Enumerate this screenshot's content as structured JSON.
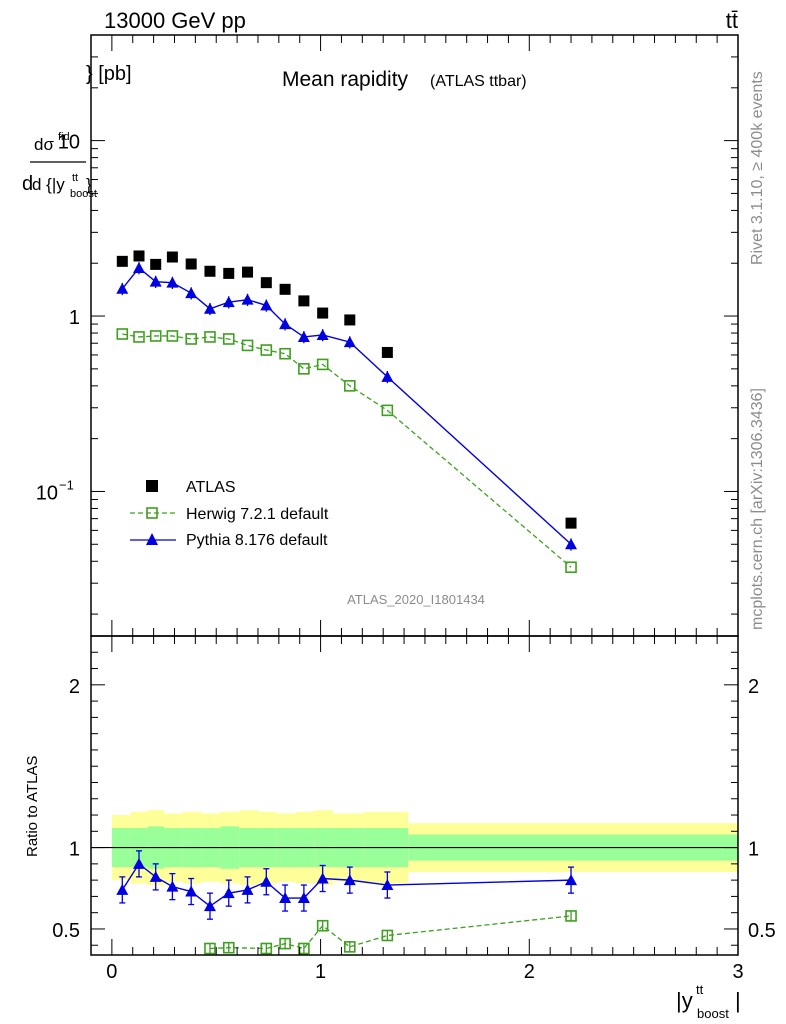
{
  "header": {
    "beam": "13000 GeV pp",
    "process": "tt̄"
  },
  "side": {
    "rivet": "Rivet 3.1.10, ≥ 400k events",
    "site": "mcplots.cern.ch [arXiv:1306.3436]"
  },
  "analysis_id": "ATLAS_2020_I1801434",
  "colors": {
    "atlas": "#000000",
    "herwig": "#3f9f1f",
    "pythia": "#0000e0",
    "band_inner": "#99ff99",
    "band_outer": "#ffff99"
  },
  "chart_data": [
    {
      "type": "scatter",
      "title": "Mean rapidity",
      "subtitle": "(ATLAS ttbar)",
      "ylabel": "d dσ^{fid} / d {|y^{tt}_{boost}|} [pb]",
      "xlabel": "|y^{tt}_{boost}|",
      "yscale": "log",
      "xlim": [
        -0.1,
        3.0
      ],
      "ylim": [
        0.015,
        40
      ],
      "yticks": [
        "10^{−1}",
        "1",
        "10"
      ],
      "legend_position": "bottom-left",
      "series": [
        {
          "name": "ATLAS",
          "x": [
            0.05,
            0.13,
            0.21,
            0.29,
            0.38,
            0.47,
            0.56,
            0.65,
            0.74,
            0.83,
            0.92,
            1.01,
            1.14,
            1.32,
            2.2
          ],
          "y": [
            2.05,
            2.2,
            1.97,
            2.17,
            1.98,
            1.8,
            1.75,
            1.78,
            1.55,
            1.42,
            1.22,
            1.04,
            0.95,
            0.62,
            0.066
          ]
        },
        {
          "name": "Herwig 7.2.1 default",
          "x": [
            0.05,
            0.13,
            0.21,
            0.29,
            0.38,
            0.47,
            0.56,
            0.65,
            0.74,
            0.83,
            0.92,
            1.01,
            1.14,
            1.32,
            2.2
          ],
          "y": [
            0.79,
            0.76,
            0.77,
            0.77,
            0.74,
            0.76,
            0.74,
            0.68,
            0.64,
            0.61,
            0.5,
            0.53,
            0.4,
            0.29,
            0.037
          ]
        },
        {
          "name": "Pythia 8.176 default",
          "x": [
            0.05,
            0.13,
            0.21,
            0.29,
            0.38,
            0.47,
            0.56,
            0.65,
            0.74,
            0.83,
            0.92,
            1.01,
            1.14,
            1.32,
            2.2
          ],
          "y": [
            1.43,
            1.88,
            1.57,
            1.55,
            1.35,
            1.1,
            1.2,
            1.24,
            1.15,
            0.9,
            0.76,
            0.78,
            0.71,
            0.45,
            0.05
          ]
        }
      ]
    },
    {
      "type": "scatter",
      "ylabel": "Ratio to ATLAS",
      "xlabel": "|y^{tt}_{boost}|",
      "xlim": [
        -0.1,
        3.0
      ],
      "ylim": [
        0.34,
        2.3
      ],
      "yticks": [
        "0.5",
        "1",
        "2"
      ],
      "xticks": [
        "0",
        "1",
        "2",
        "3"
      ],
      "bands": {
        "edges": [
          0.0,
          0.09,
          0.17,
          0.25,
          0.34,
          0.43,
          0.52,
          0.61,
          0.7,
          0.79,
          0.88,
          0.97,
          1.06,
          1.21,
          1.42,
          3.0
        ],
        "inner": [
          0.12,
          0.12,
          0.13,
          0.12,
          0.12,
          0.12,
          0.13,
          0.12,
          0.12,
          0.12,
          0.12,
          0.12,
          0.12,
          0.12,
          0.08
        ],
        "outer": [
          0.2,
          0.22,
          0.23,
          0.21,
          0.22,
          0.21,
          0.22,
          0.23,
          0.22,
          0.21,
          0.22,
          0.23,
          0.21,
          0.22,
          0.15
        ]
      },
      "series": [
        {
          "name": "Herwig 7.2.1 default",
          "x": [
            0.47,
            0.56,
            0.74,
            0.83,
            0.92,
            1.01,
            1.14,
            1.32,
            2.2
          ],
          "y": [
            0.38,
            0.385,
            0.38,
            0.41,
            0.38,
            0.52,
            0.39,
            0.46,
            0.58
          ]
        },
        {
          "name": "Pythia 8.176 default",
          "x": [
            0.05,
            0.13,
            0.21,
            0.29,
            0.38,
            0.47,
            0.56,
            0.65,
            0.74,
            0.83,
            0.92,
            1.01,
            1.14,
            1.32,
            2.2
          ],
          "y": [
            0.74,
            0.9,
            0.82,
            0.76,
            0.73,
            0.64,
            0.72,
            0.74,
            0.79,
            0.69,
            0.69,
            0.81,
            0.8,
            0.77,
            0.8
          ]
        }
      ]
    }
  ]
}
